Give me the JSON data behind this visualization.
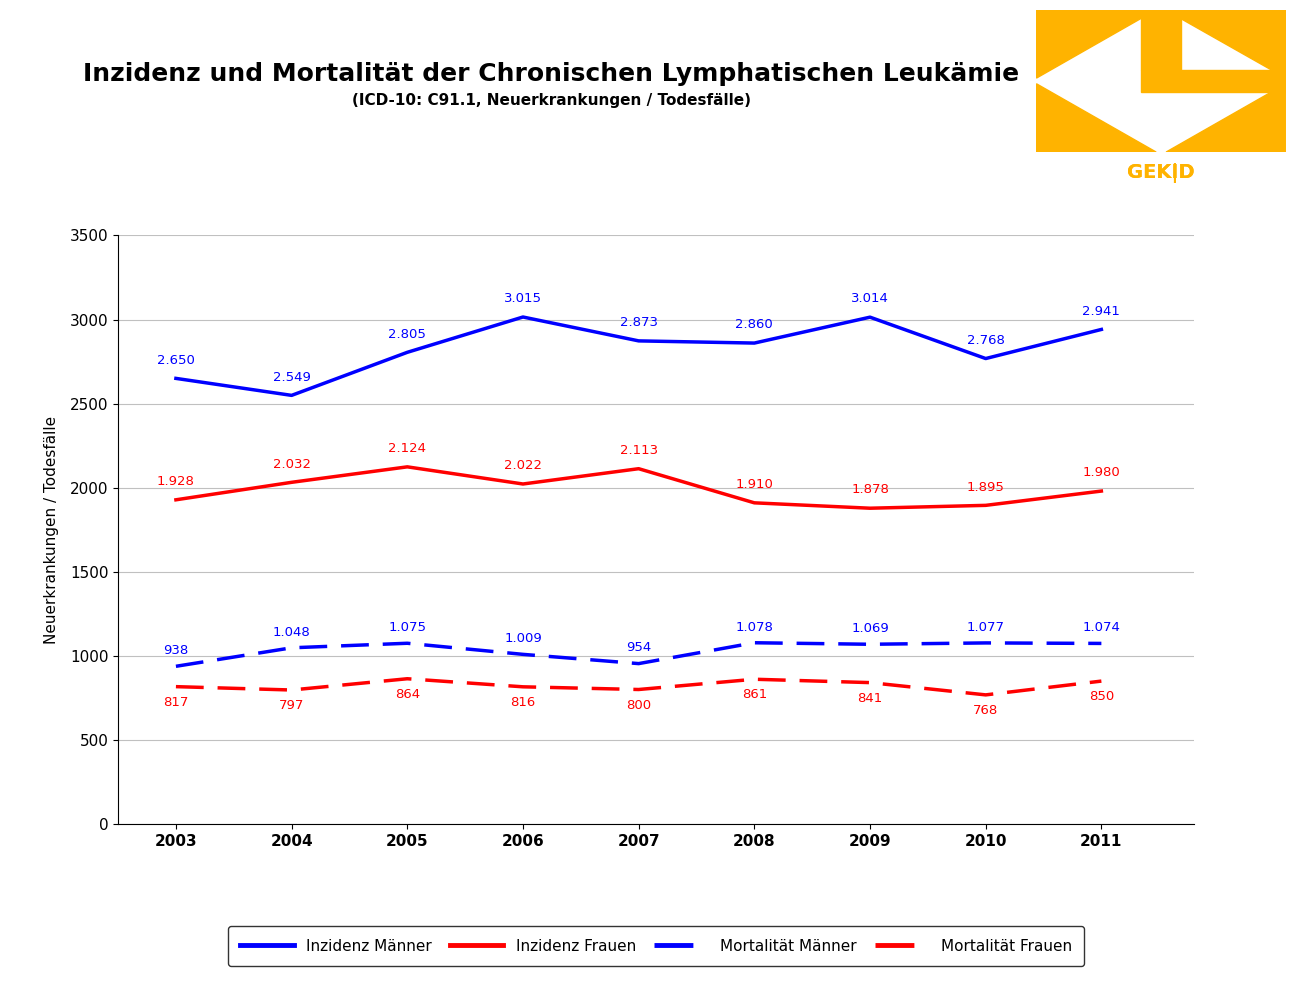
{
  "title": "Inzidenz und Mortalität der Chronischen Lymphatischen Leukämie",
  "subtitle": "(ICD-10: C91.1, Neuerkrankungen / Todesfälle)",
  "ylabel": "Neuerkrankungen / Todesfälle",
  "years": [
    2003,
    2004,
    2005,
    2006,
    2007,
    2008,
    2009,
    2010,
    2011
  ],
  "inzidenz_maenner": [
    2650,
    2549,
    2805,
    3015,
    2873,
    2860,
    3014,
    2768,
    2941
  ],
  "inzidenz_frauen": [
    1928,
    2032,
    2124,
    2022,
    2113,
    1910,
    1878,
    1895,
    1980
  ],
  "mortalitaet_maenner": [
    938,
    1048,
    1075,
    1009,
    954,
    1078,
    1069,
    1077,
    1074
  ],
  "mortalitaet_frauen": [
    817,
    797,
    864,
    816,
    800,
    861,
    841,
    768,
    850
  ],
  "inzidenz_maenner_labels": [
    "2.650",
    "2.549",
    "2.805",
    "3.015",
    "2.873",
    "2.860",
    "3.014",
    "2.768",
    "2.941"
  ],
  "inzidenz_frauen_labels": [
    "1.928",
    "2.032",
    "2.124",
    "2.022",
    "2.113",
    "1.910",
    "1.878",
    "1.895",
    "1.980"
  ],
  "mortalitaet_maenner_labels": [
    "938",
    "1.048",
    "1.075",
    "1.009",
    "954",
    "1.078",
    "1.069",
    "1.077",
    "1.074"
  ],
  "mortalitaet_frauen_labels": [
    "817",
    "797",
    "864",
    "816",
    "800",
    "861",
    "841",
    "768",
    "850"
  ],
  "color_blue": "#0000FF",
  "color_red": "#FF0000",
  "orange": "#FFB300",
  "ylim": [
    0,
    3500
  ],
  "yticks": [
    0,
    500,
    1000,
    1500,
    2000,
    2500,
    3000,
    3500
  ],
  "bg_color": "#FFFFFF",
  "plot_bg_color": "#FFFFFF",
  "grid_color": "#C0C0C0",
  "legend_labels": [
    "Inzidenz Männer",
    "Inzidenz Frauen",
    "Mortalität Männer",
    "Mortalität Frauen"
  ],
  "line_width": 2.5,
  "annotation_fontsize": 9.5,
  "title_fontsize": 18,
  "subtitle_fontsize": 11
}
